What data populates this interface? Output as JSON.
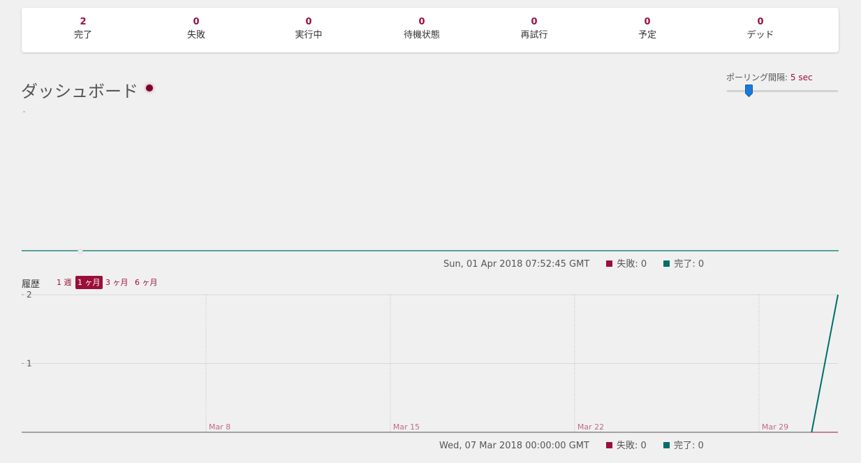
{
  "stats": [
    {
      "value": "2",
      "label": "完了"
    },
    {
      "value": "0",
      "label": "失敗"
    },
    {
      "value": "0",
      "label": "実行中"
    },
    {
      "value": "0",
      "label": "待機状態"
    },
    {
      "value": "0",
      "label": "再試行"
    },
    {
      "value": "0",
      "label": "予定"
    },
    {
      "value": "0",
      "label": "デッド"
    }
  ],
  "dashboard": {
    "title": "ダッシュボード"
  },
  "poll": {
    "label": "ポーリング間隔:",
    "value": "5 sec"
  },
  "realtime": {
    "timestamp": "Sun, 01 Apr 2018 07:52:45 GMT",
    "failed_label": "失敗: 0",
    "processed_label": "完了: 0"
  },
  "history": {
    "label": "履歴",
    "ranges": [
      "1 週",
      "1 ヶ月",
      "3 ヶ月",
      "6 ヶ月"
    ],
    "active_range": "1 ヶ月",
    "timestamp": "Wed, 07 Mar 2018 00:00:00 GMT",
    "failed_label": "失敗: 0",
    "processed_label": "完了: 0"
  },
  "colors": {
    "failed": "#9b0f3b",
    "processed": "#006f68",
    "accent": "#9b0f3b"
  },
  "chart_data": {
    "type": "line",
    "x_ticks": [
      "Mar 8",
      "Mar 15",
      "Mar 22",
      "Mar 29"
    ],
    "y_ticks": [
      "1",
      "2"
    ],
    "ylim": [
      0,
      2
    ],
    "series": [
      {
        "name": "完了",
        "x": [
          "2018-03-31",
          "2018-04-01"
        ],
        "values": [
          0,
          2
        ]
      },
      {
        "name": "失敗",
        "x": [
          "2018-03-31",
          "2018-04-01"
        ],
        "values": [
          0,
          0
        ]
      }
    ]
  }
}
